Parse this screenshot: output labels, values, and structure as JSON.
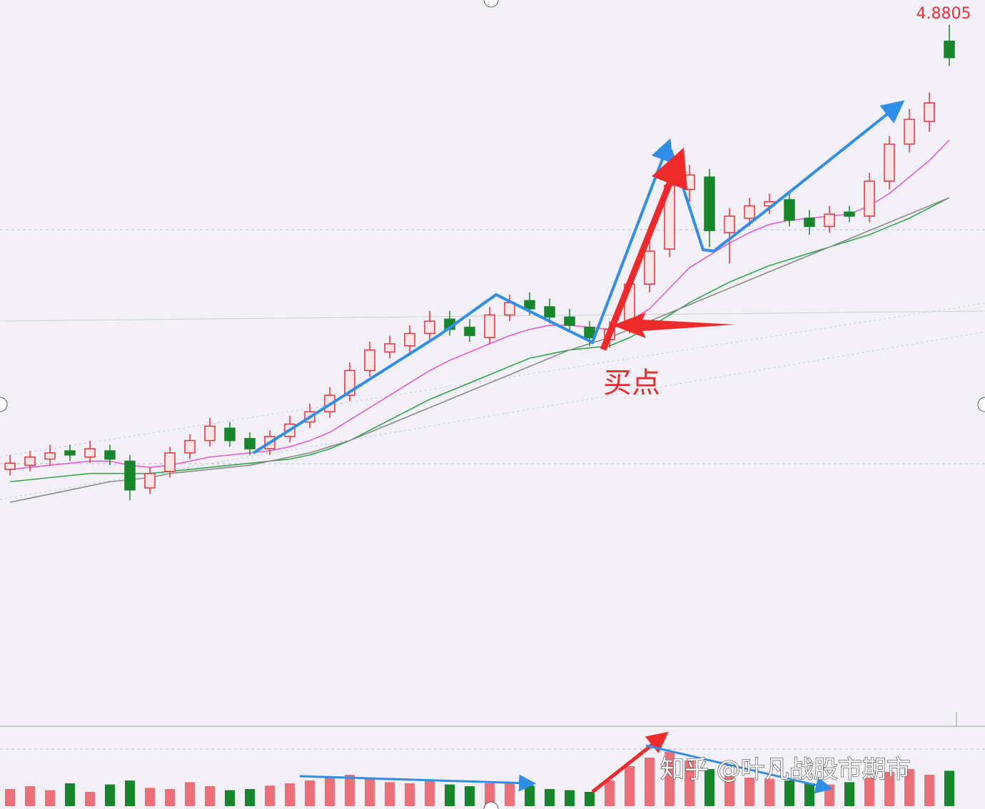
{
  "chart_data": {
    "type": "candlestick",
    "ylim": [
      1.5,
      5.0
    ],
    "up_color": "#e8323c",
    "down_color": "#18862a",
    "open": [
      2.72,
      2.74,
      2.77,
      2.81,
      2.78,
      2.81,
      2.76,
      2.63,
      2.71,
      2.8,
      2.86,
      2.92,
      2.87,
      2.82,
      2.88,
      2.95,
      3.0,
      3.08,
      3.2,
      3.29,
      3.32,
      3.38,
      3.45,
      3.41,
      3.36,
      3.47,
      3.54,
      3.51,
      3.46,
      3.41,
      3.35,
      3.41,
      3.62,
      3.79,
      4.08,
      4.14,
      3.87,
      3.94,
      4.0,
      4.03,
      3.94,
      3.9,
      3.97,
      3.95,
      4.12,
      4.3,
      4.41,
      4.8
    ],
    "high": [
      2.79,
      2.81,
      2.84,
      2.84,
      2.86,
      2.84,
      2.79,
      2.73,
      2.83,
      2.89,
      2.97,
      2.95,
      2.9,
      2.91,
      2.98,
      3.04,
      3.12,
      3.24,
      3.34,
      3.37,
      3.42,
      3.49,
      3.49,
      3.45,
      3.51,
      3.57,
      3.58,
      3.55,
      3.5,
      3.44,
      3.44,
      3.66,
      3.83,
      4.26,
      4.2,
      4.18,
      3.99,
      4.04,
      4.06,
      4.07,
      3.98,
      4.0,
      4.0,
      4.16,
      4.34,
      4.47,
      4.55,
      4.8805
    ],
    "low": [
      2.69,
      2.71,
      2.74,
      2.76,
      2.75,
      2.74,
      2.57,
      2.6,
      2.68,
      2.77,
      2.83,
      2.83,
      2.79,
      2.79,
      2.85,
      2.92,
      2.97,
      3.05,
      3.17,
      3.26,
      3.29,
      3.35,
      3.37,
      3.34,
      3.33,
      3.44,
      3.47,
      3.43,
      3.39,
      3.32,
      3.31,
      3.38,
      3.58,
      3.75,
      4.02,
      3.8,
      3.72,
      3.9,
      3.96,
      3.9,
      3.86,
      3.87,
      3.92,
      3.92,
      4.08,
      4.26,
      4.36,
      4.68
    ],
    "close": [
      2.75,
      2.78,
      2.8,
      2.79,
      2.82,
      2.77,
      2.62,
      2.7,
      2.8,
      2.86,
      2.93,
      2.86,
      2.82,
      2.88,
      2.94,
      3.0,
      3.08,
      3.2,
      3.3,
      3.33,
      3.38,
      3.44,
      3.4,
      3.37,
      3.47,
      3.53,
      3.5,
      3.46,
      3.42,
      3.36,
      3.4,
      3.62,
      3.78,
      4.1,
      4.15,
      3.88,
      3.95,
      4.0,
      4.02,
      3.93,
      3.9,
      3.96,
      3.95,
      4.12,
      4.3,
      4.42,
      4.5,
      4.72
    ],
    "ma": [
      {
        "color": "#e85ad0",
        "values": [
          2.72,
          2.73,
          2.74,
          2.75,
          2.76,
          2.76,
          2.74,
          2.73,
          2.74,
          2.76,
          2.78,
          2.79,
          2.8,
          2.81,
          2.83,
          2.86,
          2.9,
          2.96,
          3.02,
          3.08,
          3.14,
          3.2,
          3.25,
          3.29,
          3.33,
          3.37,
          3.4,
          3.42,
          3.42,
          3.41,
          3.4,
          3.44,
          3.5,
          3.6,
          3.7,
          3.76,
          3.82,
          3.87,
          3.91,
          3.93,
          3.94,
          3.95,
          3.96,
          4.0,
          4.06,
          4.14,
          4.22,
          4.32
        ]
      },
      {
        "color": "#2da84a",
        "values": [
          2.66,
          2.67,
          2.68,
          2.69,
          2.7,
          2.7,
          2.7,
          2.7,
          2.71,
          2.72,
          2.73,
          2.74,
          2.75,
          2.76,
          2.77,
          2.79,
          2.82,
          2.86,
          2.91,
          2.96,
          3.01,
          3.06,
          3.1,
          3.14,
          3.18,
          3.22,
          3.26,
          3.28,
          3.3,
          3.31,
          3.32,
          3.36,
          3.41,
          3.47,
          3.53,
          3.58,
          3.63,
          3.67,
          3.71,
          3.74,
          3.77,
          3.8,
          3.83,
          3.86,
          3.9,
          3.94,
          3.99,
          4.04
        ]
      },
      {
        "color": "#8a8a8a",
        "values": [
          2.56,
          2.58,
          2.6,
          2.62,
          2.64,
          2.66,
          2.67,
          2.68,
          2.7,
          2.71,
          2.72,
          2.73,
          2.74,
          2.76,
          2.78,
          2.8,
          2.83,
          2.86,
          2.9,
          2.94,
          2.98,
          3.02,
          3.06,
          3.1,
          3.14,
          3.18,
          3.22,
          3.26,
          3.3,
          3.33,
          3.36,
          3.4,
          3.44,
          3.48,
          3.52,
          3.56,
          3.6,
          3.64,
          3.68,
          3.72,
          3.76,
          3.8,
          3.84,
          3.88,
          3.92,
          3.96,
          4.0,
          4.04
        ]
      }
    ],
    "volume": {
      "ylim": [
        0,
        100
      ],
      "values": [
        30,
        35,
        28,
        40,
        25,
        38,
        45,
        32,
        30,
        42,
        35,
        28,
        30,
        36,
        40,
        45,
        50,
        55,
        48,
        42,
        40,
        45,
        38,
        35,
        40,
        42,
        36,
        30,
        28,
        25,
        45,
        70,
        85,
        95,
        80,
        65,
        55,
        50,
        48,
        45,
        40,
        38,
        42,
        50,
        60,
        65,
        55,
        62
      ]
    },
    "annotations": [
      "买点"
    ],
    "watermark": "知乎 @叶凡战股市期市"
  }
}
